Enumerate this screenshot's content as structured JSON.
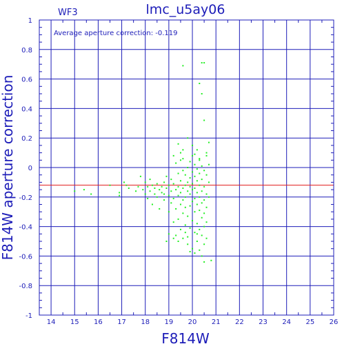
{
  "chart_data": {
    "type": "scatter",
    "title": "lmc_u5ay06",
    "chip_label": "WF3",
    "annotation": "Average aperture correction:  -0.119",
    "xlabel": "F814W",
    "ylabel": "F814W aperture correction",
    "xlim": [
      13.5,
      26
    ],
    "ylim": [
      -1,
      1
    ],
    "xticks": [
      "14",
      "15",
      "16",
      "17",
      "18",
      "19",
      "20",
      "21",
      "22",
      "23",
      "24",
      "25",
      "26"
    ],
    "yticks": [
      "1",
      "0.8",
      "0.6",
      "0.4",
      "0.2",
      "0",
      "-0.2",
      "-0.4",
      "-0.6",
      "-0.8",
      "-1"
    ],
    "grid": true,
    "average_line": -0.119,
    "colors": {
      "axis": "#1c1cb8",
      "points": "#22ee22",
      "average": "#e02020"
    },
    "points": [
      [
        15.0,
        -0.16
      ],
      [
        15.4,
        -0.15
      ],
      [
        15.7,
        -0.18
      ],
      [
        16.5,
        -0.12
      ],
      [
        16.9,
        -0.17
      ],
      [
        16.9,
        -0.19
      ],
      [
        17.1,
        -0.1
      ],
      [
        17.2,
        -0.12
      ],
      [
        17.3,
        -0.14
      ],
      [
        17.6,
        -0.16
      ],
      [
        17.7,
        -0.13
      ],
      [
        17.8,
        -0.06
      ],
      [
        17.9,
        -0.15
      ],
      [
        18.0,
        -0.18
      ],
      [
        18.0,
        -0.1
      ],
      [
        18.1,
        -0.13
      ],
      [
        18.1,
        -0.21
      ],
      [
        18.2,
        -0.16
      ],
      [
        18.2,
        -0.08
      ],
      [
        18.3,
        -0.12
      ],
      [
        18.3,
        -0.25
      ],
      [
        18.4,
        -0.14
      ],
      [
        18.4,
        -0.18
      ],
      [
        18.5,
        -0.11
      ],
      [
        18.5,
        -0.2
      ],
      [
        18.6,
        -0.15
      ],
      [
        18.6,
        -0.28
      ],
      [
        18.7,
        -0.13
      ],
      [
        18.7,
        -0.17
      ],
      [
        18.8,
        -0.1
      ],
      [
        18.8,
        -0.22
      ],
      [
        18.9,
        -0.06
      ],
      [
        18.9,
        -0.14
      ],
      [
        18.9,
        -0.5
      ],
      [
        19.0,
        -0.19
      ],
      [
        19.0,
        -0.12
      ],
      [
        19.0,
        -0.3
      ],
      [
        19.0,
        -0.45
      ],
      [
        19.1,
        -0.08
      ],
      [
        19.1,
        -0.16
      ],
      [
        19.1,
        -0.24
      ],
      [
        19.2,
        0.08
      ],
      [
        19.2,
        -0.11
      ],
      [
        19.2,
        -0.21
      ],
      [
        19.2,
        -0.37
      ],
      [
        19.3,
        0.03
      ],
      [
        19.3,
        -0.15
      ],
      [
        19.3,
        -0.28
      ],
      [
        19.3,
        -0.46
      ],
      [
        19.4,
        0.16
      ],
      [
        19.4,
        -0.04
      ],
      [
        19.4,
        -0.13
      ],
      [
        19.4,
        -0.19
      ],
      [
        19.4,
        -0.35
      ],
      [
        19.5,
        0.1
      ],
      [
        19.5,
        -0.09
      ],
      [
        19.5,
        -0.17
      ],
      [
        19.5,
        -0.25
      ],
      [
        19.5,
        -0.42
      ],
      [
        19.6,
        0.06
      ],
      [
        19.6,
        -0.02
      ],
      [
        19.6,
        -0.14
      ],
      [
        19.6,
        -0.22
      ],
      [
        19.6,
        -0.31
      ],
      [
        19.6,
        -0.48
      ],
      [
        19.7,
        -0.05
      ],
      [
        19.7,
        -0.12
      ],
      [
        19.7,
        -0.2
      ],
      [
        19.7,
        -0.27
      ],
      [
        19.7,
        -0.39
      ],
      [
        19.7,
        -0.44
      ],
      [
        19.8,
        0.0
      ],
      [
        19.8,
        -0.1
      ],
      [
        19.8,
        -0.16
      ],
      [
        19.8,
        -0.33
      ],
      [
        19.8,
        -0.47
      ],
      [
        19.8,
        -0.52
      ],
      [
        19.9,
        0.04
      ],
      [
        19.9,
        -0.07
      ],
      [
        19.9,
        -0.13
      ],
      [
        19.9,
        -0.18
      ],
      [
        19.9,
        -0.26
      ],
      [
        19.9,
        -0.41
      ],
      [
        20.0,
        -0.03
      ],
      [
        20.0,
        -0.11
      ],
      [
        20.0,
        -0.15
      ],
      [
        20.0,
        -0.23
      ],
      [
        20.0,
        -0.36
      ],
      [
        20.0,
        -0.55
      ],
      [
        20.1,
        0.09
      ],
      [
        20.1,
        0.02
      ],
      [
        20.1,
        -0.06
      ],
      [
        20.1,
        -0.14
      ],
      [
        20.1,
        -0.21
      ],
      [
        20.1,
        -0.3
      ],
      [
        20.1,
        -0.44
      ],
      [
        20.1,
        -0.58
      ],
      [
        20.2,
        0.12
      ],
      [
        20.2,
        -0.01
      ],
      [
        20.2,
        -0.09
      ],
      [
        20.2,
        -0.17
      ],
      [
        20.2,
        -0.25
      ],
      [
        20.2,
        -0.38
      ],
      [
        20.2,
        -0.5
      ],
      [
        20.3,
        0.05
      ],
      [
        20.3,
        -0.04
      ],
      [
        20.3,
        -0.12
      ],
      [
        20.3,
        -0.2
      ],
      [
        20.3,
        -0.29
      ],
      [
        20.3,
        -0.42
      ],
      [
        20.3,
        -0.56
      ],
      [
        20.4,
        0.01
      ],
      [
        20.4,
        -0.08
      ],
      [
        20.4,
        -0.16
      ],
      [
        20.4,
        -0.24
      ],
      [
        20.4,
        -0.34
      ],
      [
        20.4,
        -0.46
      ],
      [
        20.4,
        -0.6
      ],
      [
        20.5,
        -0.02
      ],
      [
        20.5,
        -0.13
      ],
      [
        20.5,
        -0.22
      ],
      [
        20.5,
        -0.31
      ],
      [
        20.5,
        -0.4
      ],
      [
        20.5,
        -0.52
      ],
      [
        20.6,
        -0.05
      ],
      [
        20.6,
        -0.18
      ],
      [
        20.6,
        -0.27
      ],
      [
        20.6,
        -0.37
      ],
      [
        20.6,
        -0.48
      ],
      [
        20.6,
        0.08
      ],
      [
        20.7,
        -0.1
      ],
      [
        20.7,
        -0.2
      ],
      [
        20.7,
        0.02
      ],
      [
        20.8,
        -0.63
      ],
      [
        20.6,
        0.1
      ],
      [
        20.7,
        0.17
      ],
      [
        20.5,
        0.32
      ],
      [
        20.4,
        0.5
      ],
      [
        20.3,
        0.57
      ],
      [
        20.4,
        0.71
      ],
      [
        20.5,
        0.71
      ],
      [
        19.6,
        0.69
      ],
      [
        20.5,
        -0.64
      ],
      [
        19.9,
        -0.57
      ],
      [
        20.0,
        0.15
      ],
      [
        19.4,
        -0.5
      ],
      [
        19.2,
        -0.48
      ],
      [
        20.2,
        -0.45
      ],
      [
        18.8,
        -0.18
      ],
      [
        19.5,
        0.05
      ],
      [
        20.0,
        0.08
      ],
      [
        19.8,
        0.2
      ],
      [
        19.6,
        0.12
      ],
      [
        20.3,
        0.06
      ]
    ]
  }
}
